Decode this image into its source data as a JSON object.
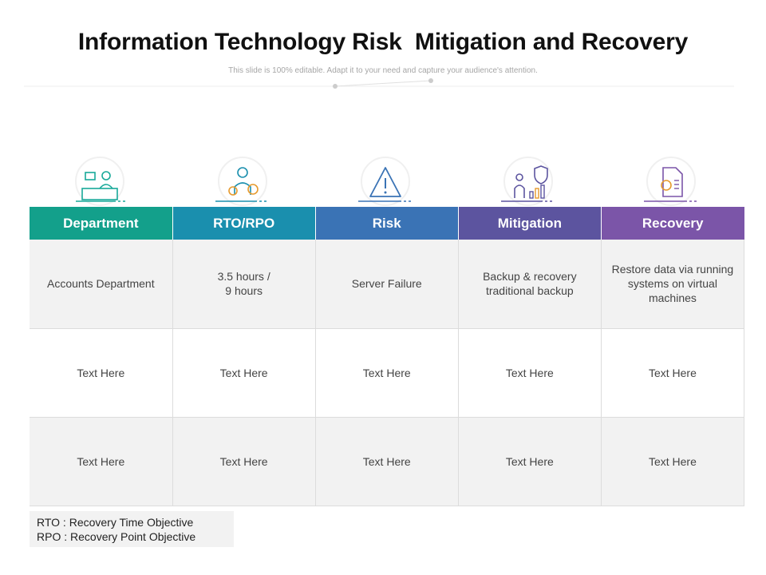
{
  "title": "Information Technology Risk  Mitigation and Recovery",
  "subtitle": "This slide is 100% editable. Adapt it to your need and capture your audience's attention.",
  "colors": {
    "department": "#13a08b",
    "rto_rpo": "#1a8fae",
    "risk": "#3a73b5",
    "mitigation": "#5c549f",
    "recovery": "#7b55a8"
  },
  "icons": [
    "receptionist-desk-icon",
    "engineer-gears-icon",
    "warning-triangle-icon",
    "business-shield-chart-icon",
    "document-chart-icon"
  ],
  "table": {
    "headers": [
      "Department",
      "RTO/RPO",
      "Risk",
      "Mitigation",
      "Recovery"
    ],
    "rows": [
      [
        "Accounts Department",
        "3.5 hours /\n9 hours",
        "Server Failure",
        "Backup & recovery traditional backup",
        "Restore data via running systems on virtual machines"
      ],
      [
        "Text Here",
        "Text Here",
        "Text Here",
        "Text Here",
        "Text Here"
      ],
      [
        "Text Here",
        "Text Here",
        "Text Here",
        "Text Here",
        "Text Here"
      ]
    ]
  },
  "legend": {
    "line1": "RTO : Recovery Time Objective",
    "line2": "RPO : Recovery Point Objective"
  }
}
